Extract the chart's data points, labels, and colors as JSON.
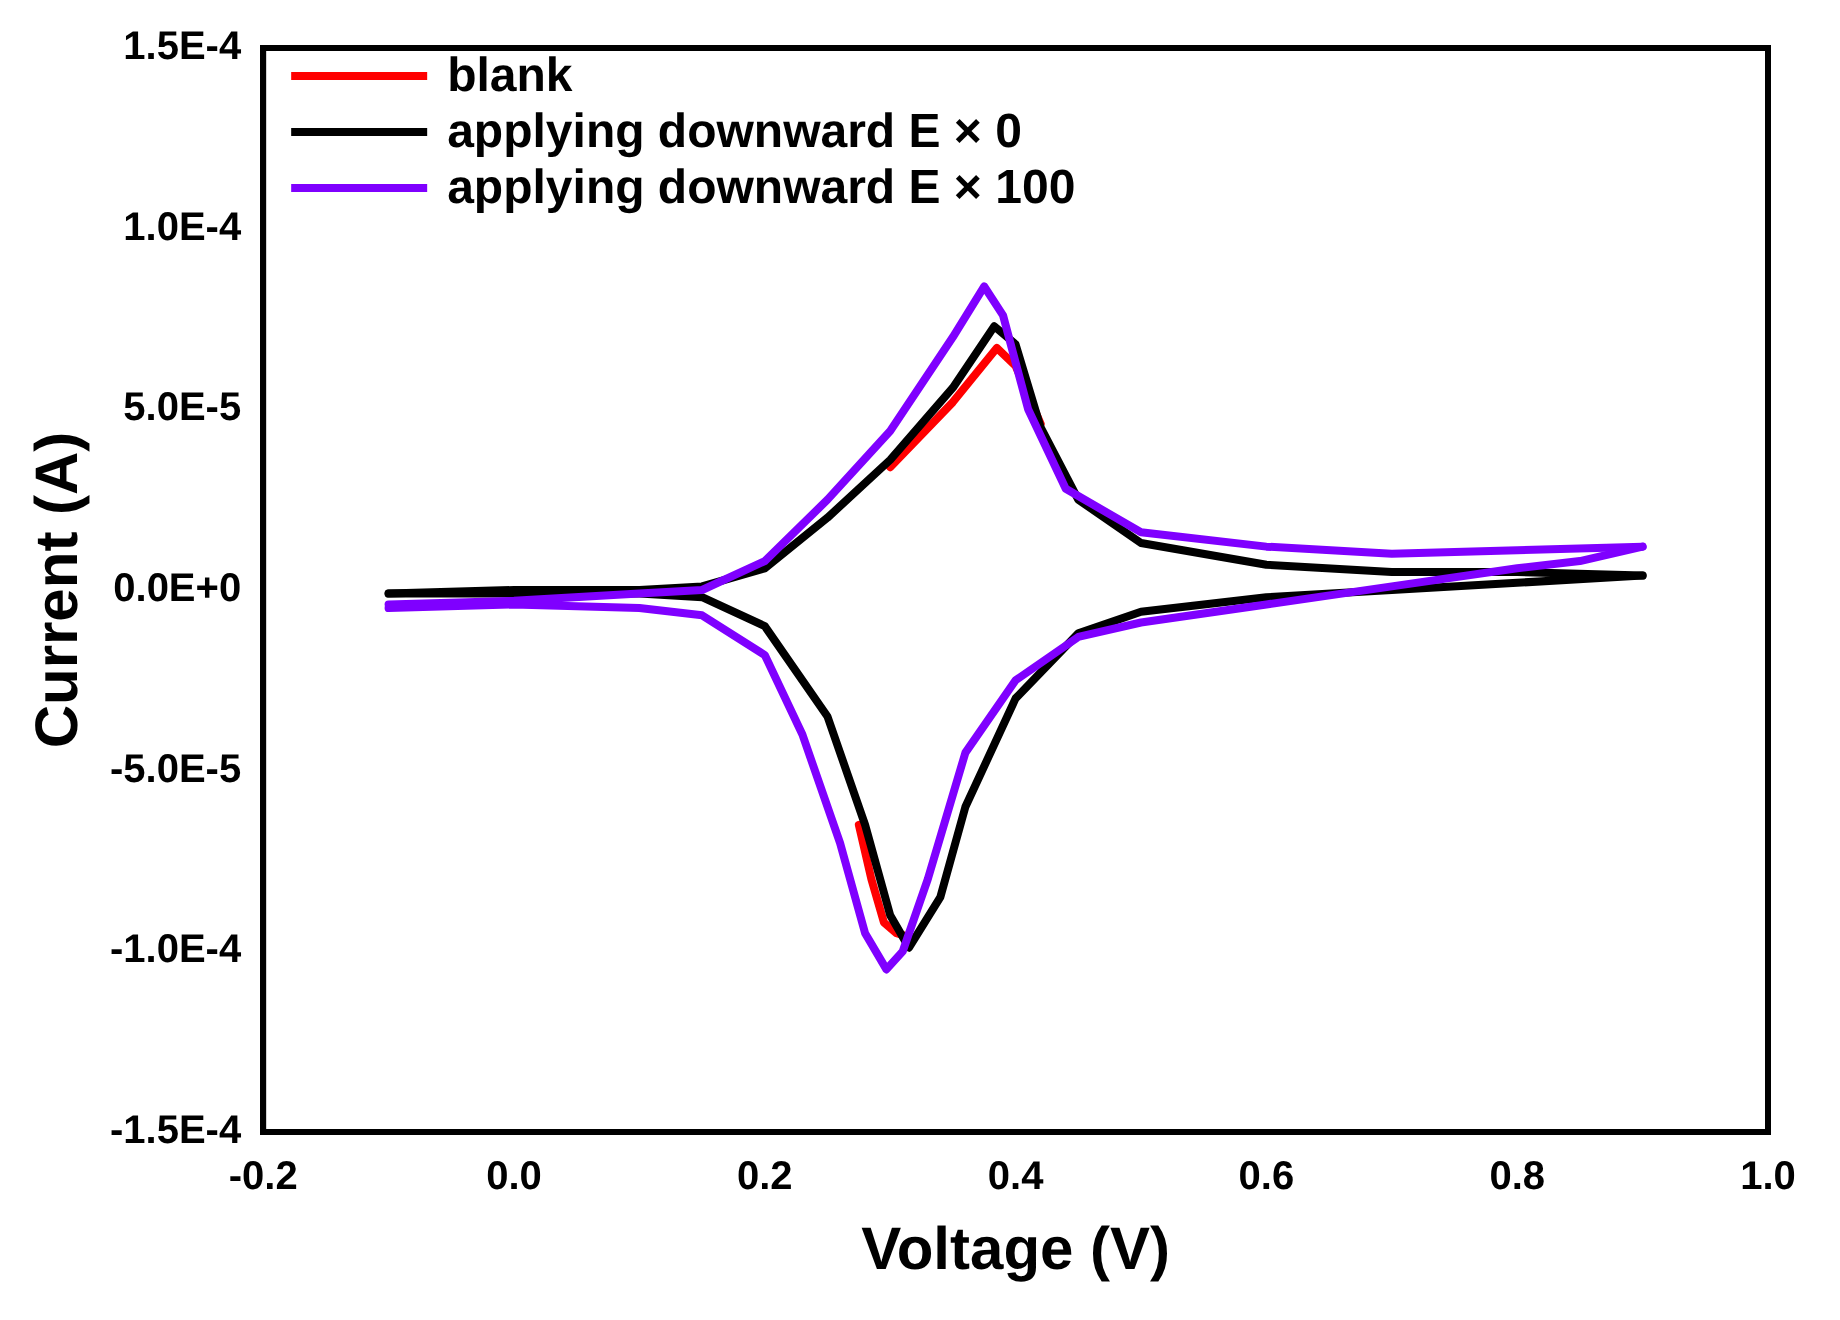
{
  "chart_data": {
    "type": "line",
    "xlabel": "Voltage (V)",
    "ylabel": "Current (A)",
    "xlim": [
      -0.2,
      1.0
    ],
    "xticks": [
      -0.2,
      {
        "value": 0,
        "label": "0.0"
      },
      0.2,
      0.4,
      0.6,
      0.8,
      {
        "value": 1,
        "label": "1.0"
      }
    ],
    "ylim": [
      -0.00015,
      0.00015
    ],
    "yticks": [
      {
        "value": -0.00015,
        "label": "-1.5E-4"
      },
      {
        "value": -0.0001,
        "label": "-1.0E-4"
      },
      {
        "value": -5e-05,
        "label": "-5.0E-5"
      },
      {
        "value": 0,
        "label": "0.0E+0"
      },
      {
        "value": 5e-05,
        "label": "5.0E-5"
      },
      {
        "value": 0.0001,
        "label": "1.0E-4"
      },
      {
        "value": 0.00015,
        "label": "1.5E-4"
      }
    ],
    "grid": false,
    "legend": "top left",
    "marker": "none",
    "line_style": "solid",
    "series": [
      {
        "name": "blank",
        "color": "#ff0000",
        "x": [
          0.3,
          0.35,
          0.385,
          0.4,
          0.42
        ],
        "values": [
          3.4e-05,
          5.2e-05,
          6.7e-05,
          6.2e-05,
          4.6e-05
        ]
      },
      {
        "color": "#ff0000",
        "x": [
          0.315,
          0.305,
          0.295,
          0.285,
          0.275
        ],
        "values": [
          -9.6e-05,
          -9.5e-05,
          -9.2e-05,
          -8e-05,
          -6.5e-05
        ]
      },
      {
        "name": "applying downward E × 0",
        "color": "#000000",
        "x": [
          -0.1,
          0.0,
          0.1,
          0.15,
          0.2,
          0.25,
          0.3,
          0.35,
          0.383,
          0.4,
          0.42,
          0.45,
          0.5,
          0.6,
          0.7,
          0.8,
          0.9
        ],
        "values": [
          -1e-06,
          0,
          0,
          1e-06,
          6e-06,
          2e-05,
          3.6e-05,
          5.6e-05,
          7.3e-05,
          6.8e-05,
          4.5e-05,
          2.5e-05,
          1.3e-05,
          7e-06,
          5e-06,
          5e-06,
          4e-06
        ]
      },
      {
        "color": "#000000",
        "x": [
          0.9,
          0.8,
          0.7,
          0.6,
          0.5,
          0.45,
          0.4,
          0.36,
          0.34,
          0.315,
          0.3,
          0.28,
          0.25,
          0.2,
          0.15,
          0.1,
          0.0,
          -0.1
        ],
        "values": [
          4e-06,
          2e-06,
          0,
          -2e-06,
          -6e-06,
          -1.2e-05,
          -3e-05,
          -6e-05,
          -8.5e-05,
          -9.9e-05,
          -9e-05,
          -6.5e-05,
          -3.5e-05,
          -1e-05,
          -2e-06,
          -1e-06,
          -1e-06,
          -1e-06
        ]
      },
      {
        "name": "applying downward E × 100",
        "color": "#7f00ff",
        "x": [
          -0.1,
          0.0,
          0.1,
          0.15,
          0.2,
          0.25,
          0.3,
          0.35,
          0.375,
          0.39,
          0.41,
          0.44,
          0.5,
          0.6,
          0.7,
          0.8,
          0.9
        ],
        "values": [
          -4e-06,
          -3e-06,
          -1e-06,
          0,
          8e-06,
          2.5e-05,
          4.4e-05,
          7e-05,
          8.4e-05,
          7.6e-05,
          5e-05,
          2.8e-05,
          1.6e-05,
          1.2e-05,
          1e-05,
          1.1e-05,
          1.2e-05
        ]
      },
      {
        "color": "#7f00ff",
        "x": [
          0.9,
          0.85,
          0.8,
          0.7,
          0.6,
          0.5,
          0.45,
          0.4,
          0.36,
          0.33,
          0.31,
          0.297,
          0.28,
          0.26,
          0.23,
          0.2,
          0.15,
          0.1,
          0.0,
          -0.1
        ],
        "values": [
          1.2e-05,
          8e-06,
          6e-06,
          1e-06,
          -4e-06,
          -9e-06,
          -1.3e-05,
          -2.5e-05,
          -4.5e-05,
          -8e-05,
          -0.0001,
          -0.000105,
          -9.5e-05,
          -7e-05,
          -4e-05,
          -1.8e-05,
          -7e-06,
          -5e-06,
          -4e-06,
          -5e-06
        ]
      }
    ]
  }
}
